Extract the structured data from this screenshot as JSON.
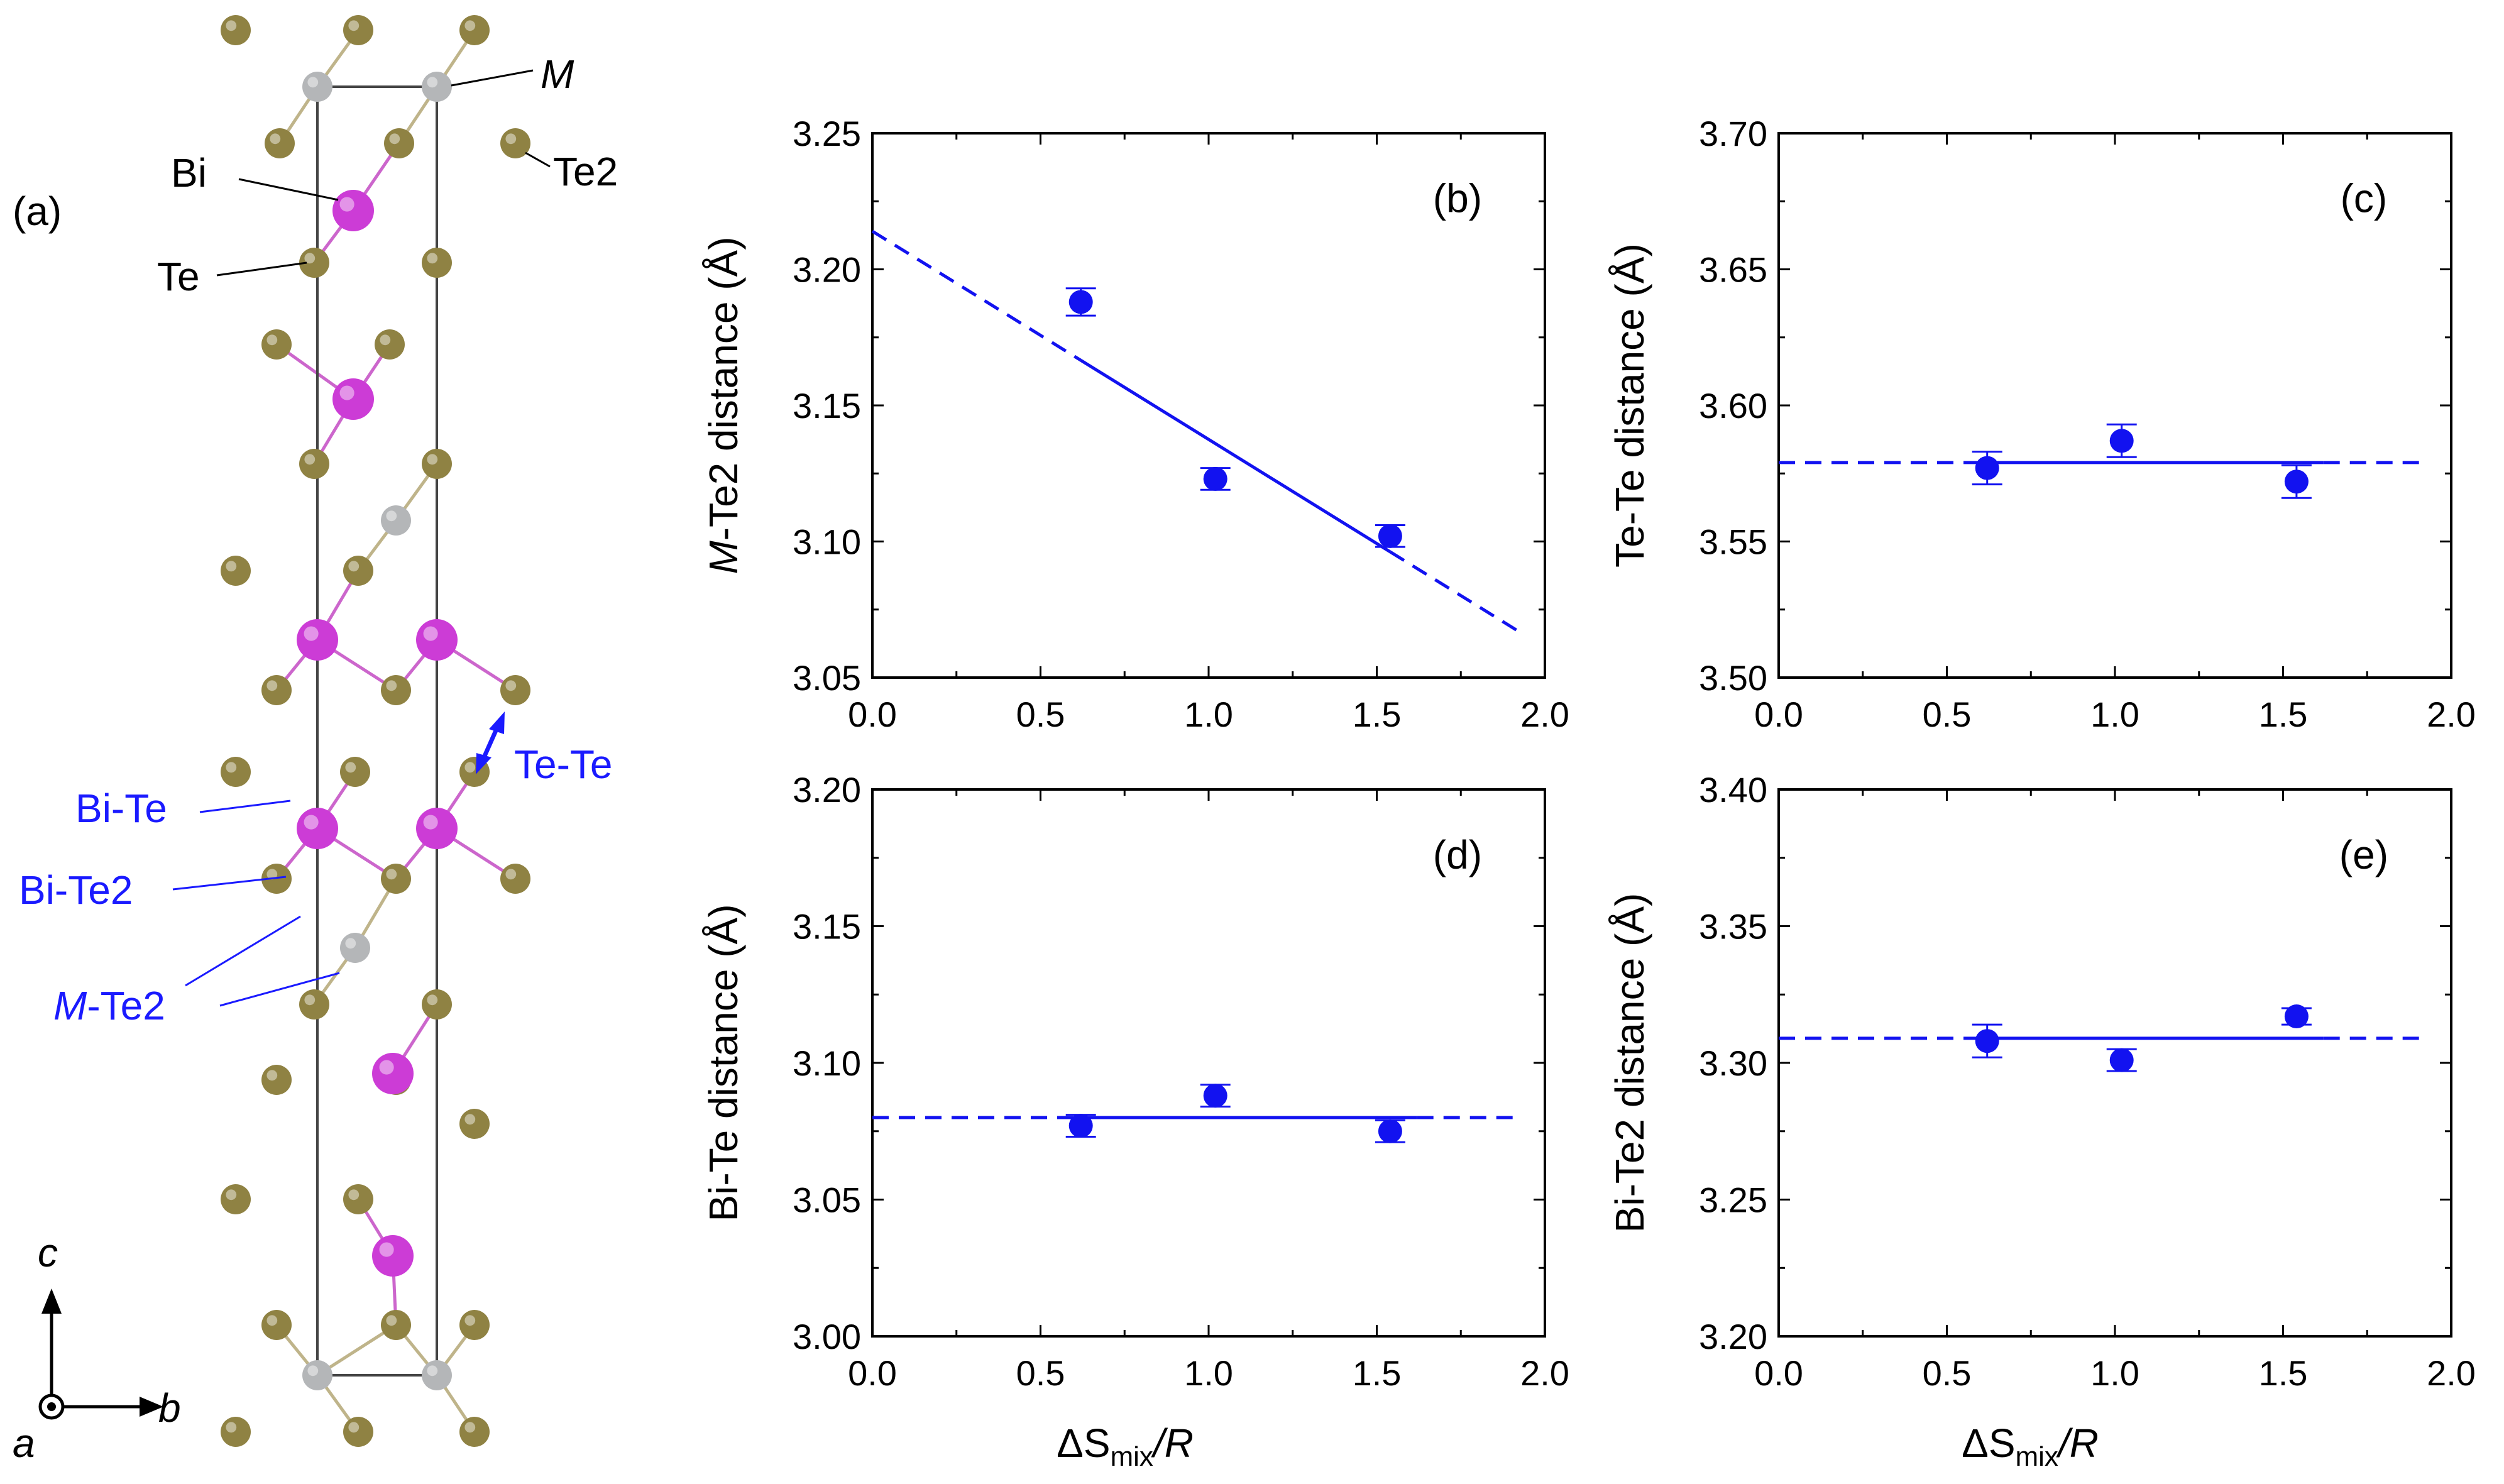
{
  "panel_a": {
    "label": "(a)",
    "atom_labels": {
      "M": "M",
      "Te2": "Te2",
      "Bi": "Bi",
      "Te": "Te"
    },
    "bond_labels": {
      "Te-Te": "Te-Te",
      "Bi-Te": "Bi-Te",
      "Bi-Te2": "Bi-Te2",
      "M-Te2_italic": "M",
      "M-Te2_suffix": "-Te2"
    },
    "axes": {
      "c": "c",
      "b": "b",
      "a": "a"
    },
    "colors": {
      "te": "#8f8243",
      "bi": "#cc3cd6",
      "m": "#b4b6b8",
      "bond_te": "#bfb48a",
      "bond_bi": "#cc66cc",
      "cell": "#444444",
      "label_blue": "#1a1aff"
    }
  },
  "x_axis_label": {
    "delta": "ΔS",
    "sub": "mix",
    "tail": "/R"
  },
  "chart_data": [
    {
      "id": "b",
      "type": "scatter",
      "panel_label": "(b)",
      "ylabel_italic": "M",
      "ylabel_text": "-Te2 distance (Å)",
      "x": [
        0.62,
        1.02,
        1.54
      ],
      "y": [
        3.188,
        3.123,
        3.102
      ],
      "yerr": [
        0.005,
        0.004,
        0.004
      ],
      "xlim": [
        0.0,
        2.0
      ],
      "ylim": [
        3.05,
        3.25
      ],
      "xticks": [
        "0.0",
        "0.5",
        "1.0",
        "1.5",
        "2.0"
      ],
      "yticks": [
        "3.05",
        "3.10",
        "3.15",
        "3.20",
        "3.25"
      ],
      "fit": {
        "slope": -0.0765,
        "intercept": 3.214,
        "solid_from": 0.62,
        "solid_to": 1.54,
        "dash_to": 1.92
      }
    },
    {
      "id": "c",
      "type": "scatter",
      "panel_label": "(c)",
      "ylabel_text": "Te-Te distance (Å)",
      "x": [
        0.62,
        1.02,
        1.54
      ],
      "y": [
        3.577,
        3.587,
        3.572
      ],
      "yerr": [
        0.006,
        0.006,
        0.006
      ],
      "xlim": [
        0.0,
        2.0
      ],
      "ylim": [
        3.5,
        3.7
      ],
      "xticks": [
        "0.0",
        "0.5",
        "1.0",
        "1.5",
        "2.0"
      ],
      "yticks": [
        "3.50",
        "3.55",
        "3.60",
        "3.65",
        "3.70"
      ],
      "fit": {
        "slope": 0,
        "intercept": 3.579,
        "solid_from": 0.62,
        "solid_to": 1.62,
        "dash_to": 1.92
      }
    },
    {
      "id": "d",
      "type": "scatter",
      "panel_label": "(d)",
      "ylabel_text": "Bi-Te distance (Å)",
      "x": [
        0.62,
        1.02,
        1.54
      ],
      "y": [
        3.077,
        3.088,
        3.075
      ],
      "yerr": [
        0.004,
        0.004,
        0.004
      ],
      "xlim": [
        0.0,
        2.0
      ],
      "ylim": [
        3.0,
        3.2
      ],
      "xticks": [
        "0.0",
        "0.5",
        "1.0",
        "1.5",
        "2.0"
      ],
      "yticks": [
        "3.00",
        "3.05",
        "3.10",
        "3.15",
        "3.20"
      ],
      "fit": {
        "slope": 0,
        "intercept": 3.08,
        "solid_from": 0.62,
        "solid_to": 1.62,
        "dash_to": 1.92
      }
    },
    {
      "id": "e",
      "type": "scatter",
      "panel_label": "(e)",
      "ylabel_text": "Bi-Te2 distance (Å)",
      "x": [
        0.62,
        1.02,
        1.54
      ],
      "y": [
        3.308,
        3.301,
        3.317
      ],
      "yerr": [
        0.006,
        0.004,
        0.003
      ],
      "xlim": [
        0.0,
        2.0
      ],
      "ylim": [
        3.2,
        3.4
      ],
      "xticks": [
        "0.0",
        "0.5",
        "1.0",
        "1.5",
        "2.0"
      ],
      "yticks": [
        "3.20",
        "3.25",
        "3.30",
        "3.35",
        "3.40"
      ],
      "fit": {
        "slope": 0,
        "intercept": 3.309,
        "solid_from": 0.62,
        "solid_to": 1.62,
        "dash_to": 1.92
      }
    }
  ],
  "style": {
    "marker_color": "#1212f0",
    "axis_color": "#000000"
  }
}
